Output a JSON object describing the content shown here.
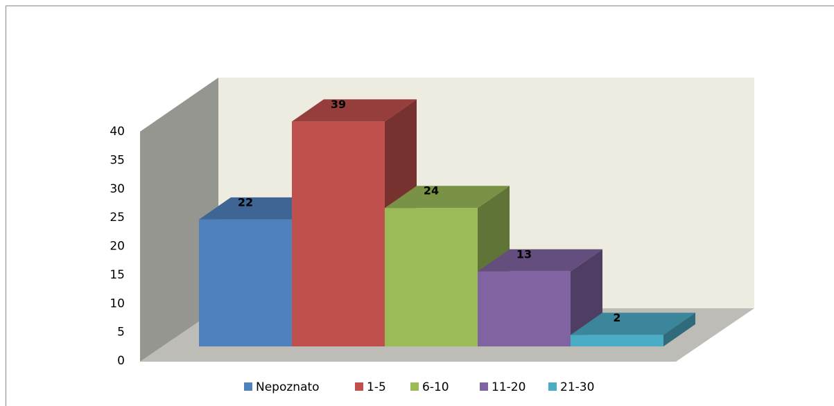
{
  "chart_data": {
    "type": "bar3d",
    "series": [
      {
        "name": "Nepoznato",
        "color": "#4f81bd",
        "values": [
          22
        ]
      },
      {
        "name": "1-5",
        "color": "#c0504d",
        "values": [
          39
        ]
      },
      {
        "name": "6-10",
        "color": "#9bbb59",
        "values": [
          24
        ]
      },
      {
        "name": "11-20",
        "color": "#8064a2",
        "values": [
          13
        ]
      },
      {
        "name": "21-30",
        "color": "#4bacc6",
        "values": [
          2
        ]
      }
    ],
    "ylim": [
      0,
      40
    ],
    "yticks": [
      0,
      5,
      10,
      15,
      20,
      25,
      30,
      35,
      40
    ],
    "legend": "bottom"
  }
}
